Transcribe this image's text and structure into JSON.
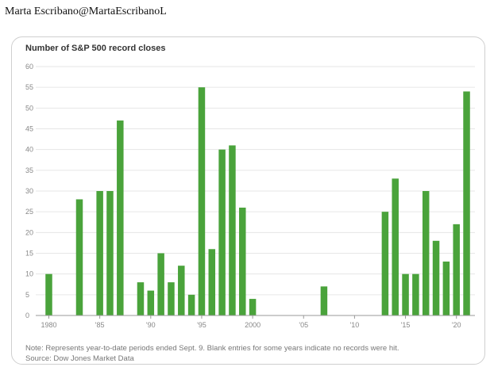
{
  "byline": "Marta Escribano@MartaEscribanoL",
  "colors": {
    "bar": "#4aa33b",
    "grid": "#e6e6e6",
    "axis": "#999999",
    "tick_text": "#888888"
  },
  "chart_data": {
    "type": "bar",
    "title": "Number of S&P 500 record closes",
    "xlabel": "",
    "ylabel": "",
    "ylim": [
      0,
      60
    ],
    "yticks": [
      0,
      5,
      10,
      15,
      20,
      25,
      30,
      35,
      40,
      45,
      50,
      55,
      60
    ],
    "xrange": [
      1979,
      2022
    ],
    "xticks": [
      {
        "year": 1980,
        "label": "1980"
      },
      {
        "year": 1985,
        "label": "'85"
      },
      {
        "year": 1990,
        "label": "'90"
      },
      {
        "year": 1995,
        "label": "'95"
      },
      {
        "year": 2000,
        "label": "2000"
      },
      {
        "year": 2005,
        "label": "'05"
      },
      {
        "year": 2010,
        "label": "'10"
      },
      {
        "year": 2015,
        "label": "'15"
      },
      {
        "year": 2020,
        "label": "'20"
      }
    ],
    "categories": [
      1980,
      1983,
      1985,
      1986,
      1987,
      1989,
      1990,
      1991,
      1992,
      1993,
      1994,
      1995,
      1996,
      1997,
      1998,
      1999,
      2000,
      2007,
      2013,
      2014,
      2015,
      2016,
      2017,
      2018,
      2019,
      2020,
      2021
    ],
    "values": [
      10,
      28,
      30,
      30,
      47,
      8,
      6,
      15,
      8,
      12,
      5,
      55,
      16,
      40,
      41,
      26,
      4,
      7,
      25,
      33,
      10,
      10,
      30,
      18,
      13,
      22,
      54
    ],
    "grid": true
  },
  "note": "Note: Represents year-to-date periods ended Sept. 9. Blank entries for some years indicate no records were hit.",
  "source": "Source: Dow Jones Market Data"
}
